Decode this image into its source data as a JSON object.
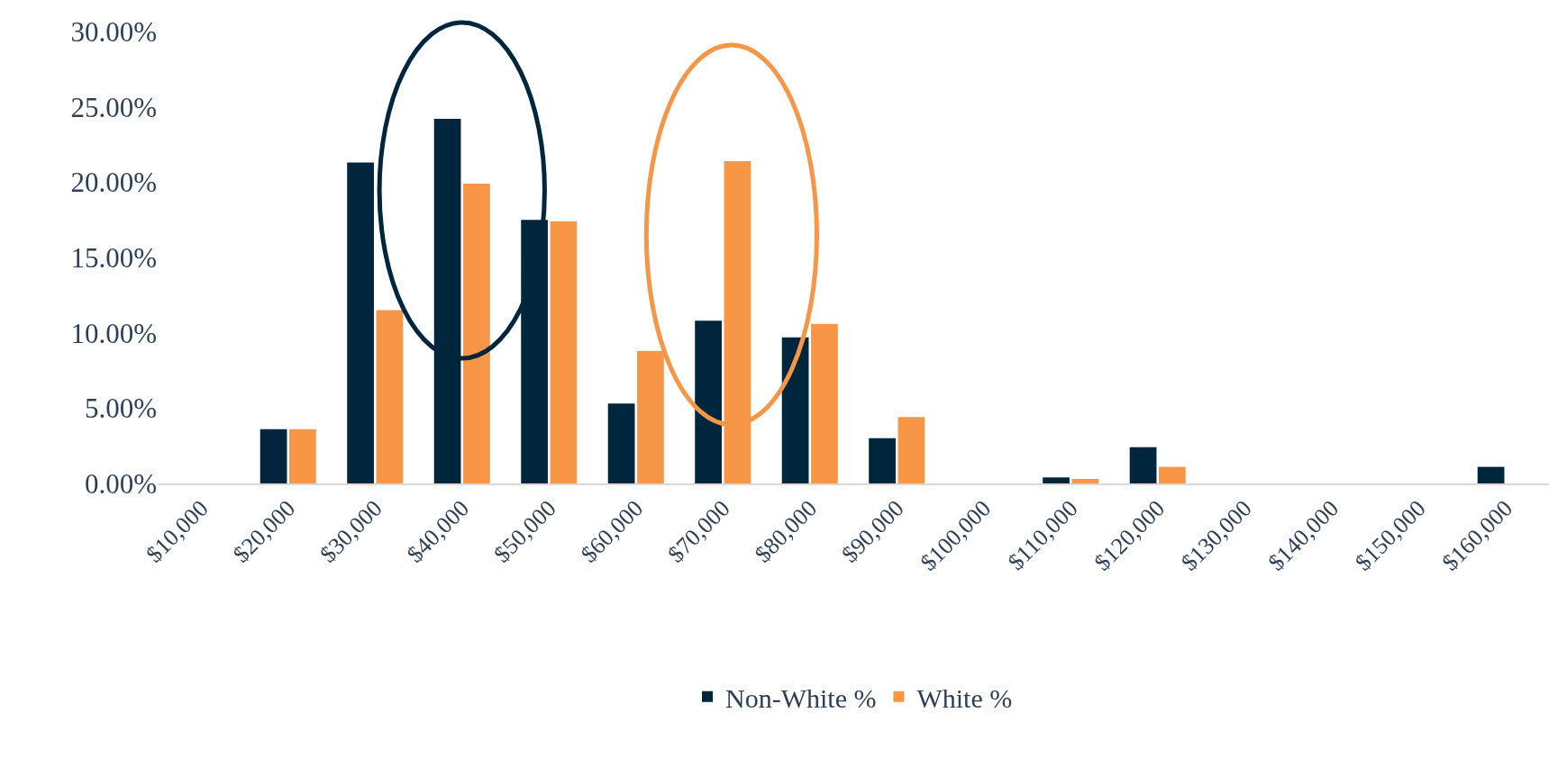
{
  "chart_data": {
    "type": "bar",
    "categories": [
      "$10,000",
      "$20,000",
      "$30,000",
      "$40,000",
      "$50,000",
      "$60,000",
      "$70,000",
      "$80,000",
      "$90,000",
      "$100,000",
      "$110,000",
      "$120,000",
      "$130,000",
      "$140,000",
      "$150,000",
      "$160,000"
    ],
    "series": [
      {
        "name": "Non-White %",
        "color": "#00263e",
        "values": [
          0,
          3.6,
          21.3,
          24.2,
          17.5,
          5.3,
          10.8,
          9.7,
          3.0,
          0,
          0.4,
          2.4,
          0,
          0,
          0,
          1.1
        ]
      },
      {
        "name": "White %",
        "color": "#f79646",
        "values": [
          0,
          3.6,
          11.5,
          19.9,
          17.4,
          8.8,
          21.4,
          10.6,
          4.4,
          0,
          0.3,
          1.1,
          0,
          0,
          0,
          0
        ]
      }
    ],
    "ylim": [
      0,
      30
    ],
    "yticks": [
      {
        "value": 0,
        "label": "0.00%"
      },
      {
        "value": 5,
        "label": "5.00%"
      },
      {
        "value": 10,
        "label": "10.00%"
      },
      {
        "value": 15,
        "label": "15.00%"
      },
      {
        "value": 20,
        "label": "20.00%"
      },
      {
        "value": 25,
        "label": "25.00%"
      },
      {
        "value": 30,
        "label": "30.00%"
      }
    ],
    "grid": false,
    "legend": "bottom"
  }
}
